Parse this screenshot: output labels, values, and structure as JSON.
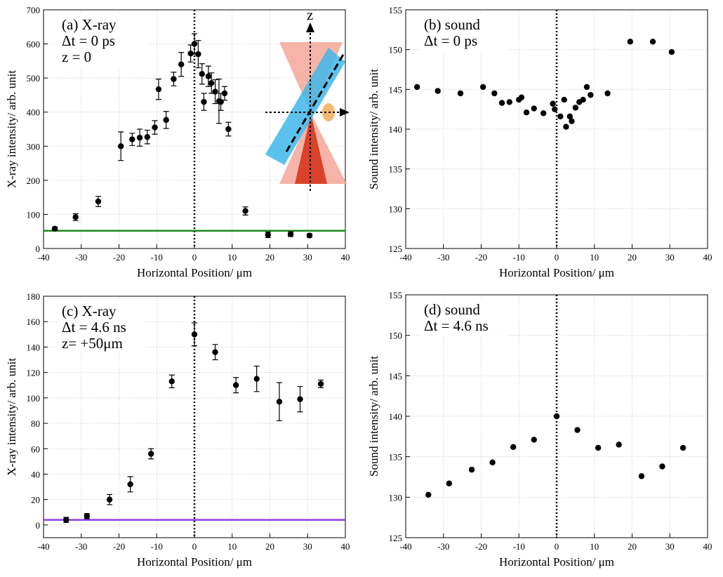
{
  "chart_data": [
    {
      "type": "scatter",
      "annotations": [
        "(a) X-ray",
        "Δt = 0 ps",
        "z = 0"
      ],
      "inset_label": "z",
      "x_label": "Horizontal Position/ μm",
      "y_label": "X-ray intensity/ arb. unit",
      "x": [
        -37,
        -31.5,
        -25.5,
        -19.5,
        -16.5,
        -14.5,
        -12.5,
        -10.5,
        -9.5,
        -7.5,
        -5.5,
        -3.5,
        -1,
        0,
        1,
        2,
        2.5,
        3.7,
        4.5,
        5.5,
        6.5,
        7,
        8,
        9,
        13.5,
        19.5,
        25.5,
        30.5
      ],
      "values": [
        58,
        92,
        138,
        300,
        320,
        325,
        327,
        355,
        467,
        377,
        497,
        540,
        572,
        600,
        570,
        512,
        430,
        505,
        485,
        460,
        432,
        430,
        455,
        350,
        110,
        40,
        42,
        38
      ],
      "errors": [
        5,
        10,
        15,
        42,
        18,
        25,
        20,
        20,
        30,
        25,
        20,
        35,
        25,
        30,
        40,
        30,
        25,
        30,
        30,
        35,
        65,
        25,
        20,
        20,
        12,
        8,
        7,
        5
      ],
      "color": "#000000",
      "hline": {
        "value": 52,
        "color": "#1a8a1a"
      },
      "vline": 0,
      "xlim": [
        -40,
        40
      ],
      "xticks": [
        -40,
        -30,
        -20,
        -10,
        0,
        10,
        20,
        30,
        40
      ],
      "ylim": [
        0,
        700
      ],
      "yticks": [
        0,
        100,
        200,
        300,
        400,
        500,
        600,
        700
      ],
      "grid": true
    },
    {
      "type": "scatter",
      "annotations": [
        "(b) sound",
        "Δt = 0 ps"
      ],
      "x_label": "Horizontal Position/ μm",
      "y_label": "Sound intensity/ arb. unit",
      "x": [
        -37,
        -31.5,
        -25.5,
        -19.5,
        -16.5,
        -14.5,
        -12.5,
        -10,
        -9.3,
        -8,
        -6,
        -3.5,
        -1,
        -0.5,
        1,
        2,
        2.5,
        3.5,
        4,
        5,
        6,
        7,
        8,
        9,
        13.5,
        19.5,
        25.5,
        30.5
      ],
      "values": [
        145.3,
        144.8,
        144.5,
        145.3,
        144.5,
        143.3,
        143.4,
        143.7,
        144,
        142.1,
        142.6,
        142,
        143.2,
        142.5,
        141.6,
        143.7,
        140.3,
        141.6,
        141,
        142.7,
        143.4,
        143.7,
        145.3,
        144.3,
        144.5,
        151,
        151,
        149.7
      ],
      "color": "#000000",
      "vline": 0,
      "xlim": [
        -40,
        40
      ],
      "xticks": [
        -40,
        -30,
        -20,
        -10,
        0,
        10,
        20,
        30,
        40
      ],
      "ylim": [
        125,
        155
      ],
      "yticks": [
        125,
        130,
        135,
        140,
        145,
        150,
        155
      ],
      "grid": true
    },
    {
      "type": "scatter",
      "annotations": [
        "(c) X-ray",
        "Δt = 4.6 ns",
        "z= +50μm"
      ],
      "x_label": "Horizontal Position/ μm",
      "y_label": "X-ray intensity/ arb. unit",
      "x": [
        -34,
        -28.5,
        -22.5,
        -17,
        -11.5,
        -6,
        0,
        5.5,
        11,
        16.5,
        22.5,
        28,
        33.5
      ],
      "values": [
        4,
        7,
        20,
        32,
        56,
        113,
        150,
        136,
        110,
        115,
        97,
        99,
        111
      ],
      "errors": [
        2,
        2,
        4,
        6,
        4,
        5,
        9,
        6,
        6,
        10,
        15,
        10,
        3
      ],
      "color": "#000000",
      "hline": {
        "value": 4,
        "color": "#8a3ee0"
      },
      "vline": 0,
      "xlim": [
        -40,
        40
      ],
      "xticks": [
        -40,
        -30,
        -20,
        -10,
        0,
        10,
        20,
        30,
        40
      ],
      "ylim": [
        -10,
        180
      ],
      "yticks": [
        0,
        20,
        40,
        60,
        80,
        100,
        120,
        140,
        160,
        180
      ],
      "grid": true
    },
    {
      "type": "scatter",
      "annotations": [
        "(d) sound",
        "Δt = 4.6 ns"
      ],
      "x_label": "Horizontal Position/ μm",
      "y_label": "Sound intensity/ arb. unit",
      "x": [
        -34,
        -28.5,
        -22.5,
        -17,
        -11.5,
        -6,
        0,
        5.5,
        11,
        16.5,
        22.5,
        28,
        33.5
      ],
      "values": [
        130.3,
        131.7,
        133.4,
        134.3,
        136.2,
        137.1,
        140,
        138.3,
        136.1,
        136.5,
        132.6,
        133.8,
        136.1
      ],
      "color": "#000000",
      "vline": 0,
      "xlim": [
        -40,
        40
      ],
      "xticks": [
        -40,
        -30,
        -20,
        -10,
        0,
        10,
        20,
        30,
        40
      ],
      "ylim": [
        125,
        155
      ],
      "yticks": [
        125,
        130,
        135,
        140,
        145,
        150,
        155
      ],
      "grid": true
    }
  ]
}
